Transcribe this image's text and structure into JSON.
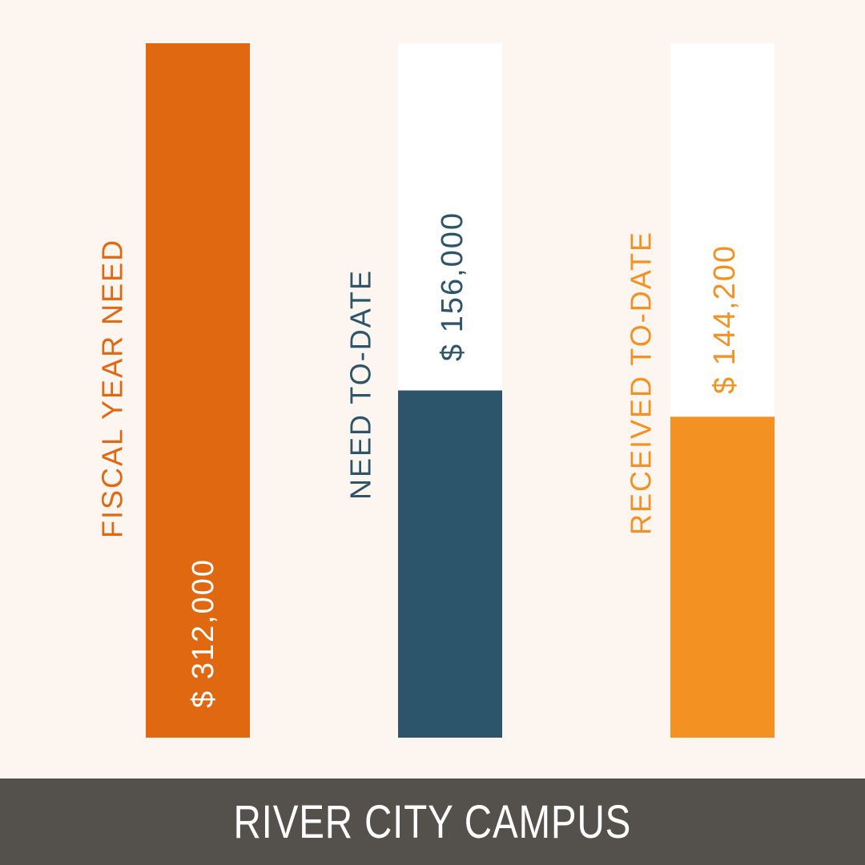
{
  "chart_data": {
    "type": "bar",
    "categories": [
      "FISCAL YEAR NEED",
      "NEED TO-DATE",
      "RECEIVED TO-DATE"
    ],
    "values": [
      312000,
      156000,
      144200
    ],
    "value_labels": [
      "$ 312,000",
      "$ 156,000",
      "$ 144,200"
    ],
    "ylim": [
      0,
      312000
    ],
    "colors": [
      "#e06811",
      "#2c546b",
      "#f39222"
    ],
    "track_color": "#ffffff",
    "grid": false,
    "legend": "none"
  },
  "footer": {
    "title": "RIVER CITY CAMPUS"
  }
}
